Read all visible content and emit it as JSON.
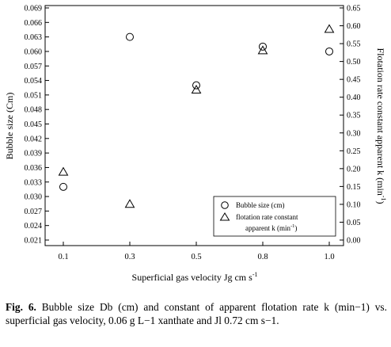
{
  "chart_data": {
    "type": "scatter",
    "x_axis": {
      "label": "Superficial  gas velocity Jg cm s",
      "label_sup": "-1",
      "ticks": [
        "0.1",
        "0.3",
        "0.5",
        "0.8",
        "1.0"
      ],
      "categorical": true
    },
    "y_left": {
      "label": "Bubble size (Cm)",
      "range": [
        0.021,
        0.069
      ],
      "ticks": [
        "0.021",
        "0.024",
        "0.027",
        "0.030",
        "0.033",
        "0.036",
        "0.039",
        "0.042",
        "0.045",
        "0.048",
        "0.051",
        "0.054",
        "0.057",
        "0.060",
        "0.063",
        "0.066",
        "0.069"
      ]
    },
    "y_right": {
      "label": "Flotation rate constant apparent  k  (min",
      "label_sup": "-1",
      "label_tail": ")",
      "range": [
        0.0,
        0.65
      ],
      "ticks": [
        "0.00",
        "0.05",
        "0.10",
        "0.15",
        "0.20",
        "0.25",
        "0.30",
        "0.35",
        "0.40",
        "0.45",
        "0.50",
        "0.55",
        "0.60",
        "0.65"
      ]
    },
    "series": [
      {
        "name": "Bubble size (cm)",
        "marker": "circle",
        "axis": "left",
        "points": [
          {
            "x": "0.1",
            "y": 0.032
          },
          {
            "x": "0.3",
            "y": 0.063
          },
          {
            "x": "0.5",
            "y": 0.053
          },
          {
            "x": "0.8",
            "y": 0.061
          },
          {
            "x": "1.0",
            "y": 0.06
          }
        ]
      },
      {
        "name": "flotation rate constant apparent k (min-1)",
        "marker": "triangle",
        "axis": "right",
        "points": [
          {
            "x": "0.1",
            "y": 0.19
          },
          {
            "x": "0.3",
            "y": 0.1
          },
          {
            "x": "0.5",
            "y": 0.42
          },
          {
            "x": "0.8",
            "y": 0.53
          },
          {
            "x": "1.0",
            "y": 0.59
          }
        ]
      }
    ],
    "legend": {
      "placement": "bottom-right",
      "entries": [
        {
          "marker": "circle",
          "text": "Bubble size (cm)"
        },
        {
          "marker": "triangle",
          "line1": "flotation rate constant",
          "line2_a": "apparent  k  (min",
          "line2_sup": "-1",
          "line2_b": ")"
        }
      ]
    }
  },
  "caption": {
    "label": "Fig. 6.",
    "text": " Bubble size Db (cm) and constant of apparent flotation rate k (min−1) vs. superficial gas velocity, 0.06 g L−1 xanthate and Jl 0.72 cm s−1."
  }
}
